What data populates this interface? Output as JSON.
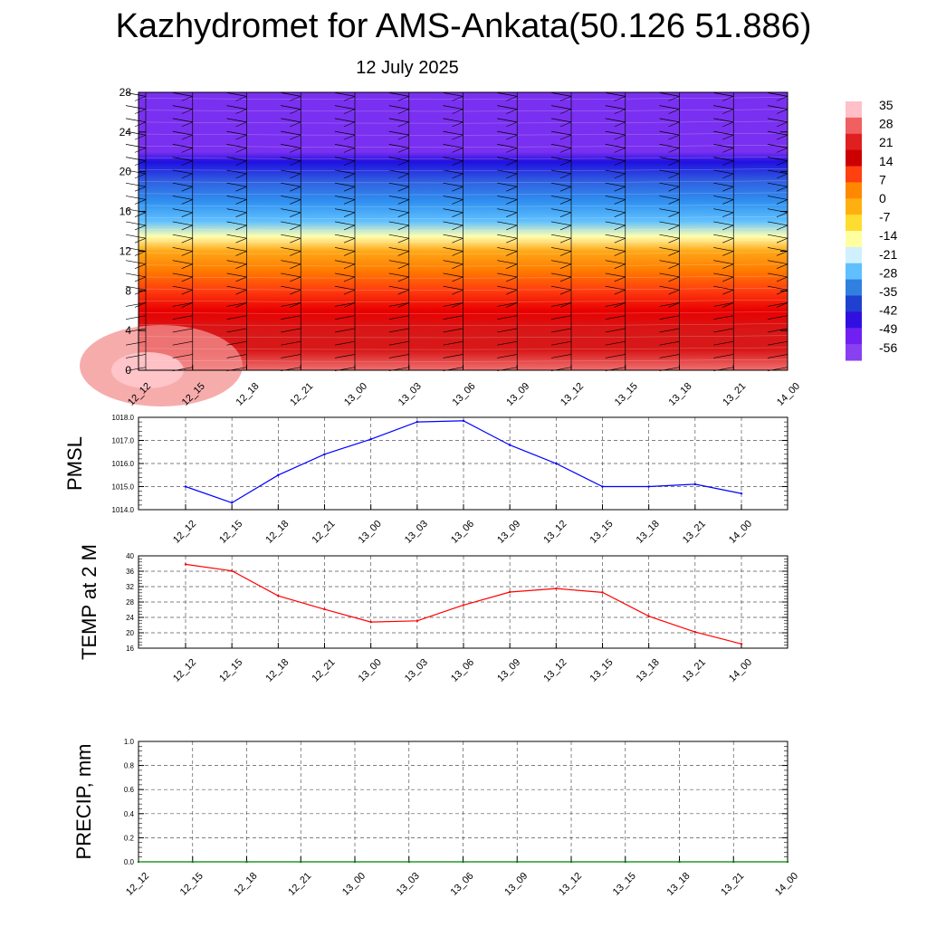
{
  "header": {
    "title": "Kazhydromet for AMS-Ankata(50.126 51.886)",
    "subtitle": "12 July 2025"
  },
  "colors": {
    "pmsl_line": "#0000ff",
    "temp_line": "#ff0000",
    "precip_line": "#008000",
    "grid": "#555555"
  },
  "chart_data": [
    {
      "type": "heatmap",
      "title": "",
      "xlabel": "",
      "ylabel": "",
      "x": [
        "12_12",
        "12_15",
        "12_18",
        "12_21",
        "13_00",
        "13_03",
        "13_06",
        "13_09",
        "13_12",
        "13_15",
        "13_18",
        "13_21",
        "14_00"
      ],
      "yticks": [
        0,
        4,
        8,
        12,
        16,
        20,
        24,
        28
      ],
      "ylim": [
        0,
        28
      ],
      "colorbar_labels": [
        "35",
        "28",
        "21",
        "14",
        "7",
        "0",
        "-7",
        "-14",
        "-21",
        "-28",
        "-35",
        "-42",
        "-49",
        "-56"
      ],
      "colorbar_colors": [
        "#ffc0c8",
        "#f06060",
        "#e02020",
        "#cc0000",
        "#ff4010",
        "#ff8800",
        "#ffb010",
        "#ffdd30",
        "#ffffa0",
        "#d0f0ff",
        "#60c0ff",
        "#3080e0",
        "#2040d0",
        "#3010e0",
        "#7020f0",
        "#8840f0"
      ],
      "levels": [
        {
          "z": 0,
          "t": 30
        },
        {
          "z": 2,
          "t": 26
        },
        {
          "z": 4,
          "t": 22
        },
        {
          "z": 6,
          "t": 17
        },
        {
          "z": 8,
          "t": 10
        },
        {
          "z": 10,
          "t": 2
        },
        {
          "z": 12,
          "t": -5
        },
        {
          "z": 13.5,
          "t": -14
        },
        {
          "z": 15,
          "t": -24
        },
        {
          "z": 17,
          "t": -34
        },
        {
          "z": 19,
          "t": -44
        },
        {
          "z": 21,
          "t": -54
        },
        {
          "z": 22,
          "t": -56
        },
        {
          "z": 24,
          "t": -56
        },
        {
          "z": 28,
          "t": -56
        }
      ]
    },
    {
      "type": "line",
      "title": "",
      "ylabel": "PMSL",
      "xlabel": "",
      "x": [
        "12_12",
        "12_15",
        "12_18",
        "12_21",
        "13_00",
        "13_03",
        "13_06",
        "13_09",
        "13_12",
        "13_15",
        "13_18",
        "13_21",
        "14_00"
      ],
      "ylim": [
        1014.0,
        1018.0
      ],
      "yticks": [
        "1014.0",
        "1015.0",
        "1016.0",
        "1017.0",
        "1018.0"
      ],
      "series": [
        {
          "values": [
            1015.0,
            1014.3,
            1015.5,
            1016.4,
            1017.05,
            1017.8,
            1017.85,
            1016.8,
            1016.0,
            1015.0,
            1015.0,
            1015.1,
            1014.7
          ]
        }
      ]
    },
    {
      "type": "line",
      "title": "",
      "ylabel": "TEMP at 2 M",
      "xlabel": "",
      "x": [
        "12_12",
        "12_15",
        "12_18",
        "12_21",
        "13_00",
        "13_03",
        "13_06",
        "13_09",
        "13_12",
        "13_15",
        "13_18",
        "13_21",
        "14_00"
      ],
      "ylim": [
        16,
        40
      ],
      "yticks": [
        "16",
        "20",
        "24",
        "28",
        "32",
        "36",
        "40"
      ],
      "series": [
        {
          "values": [
            37.8,
            36.1,
            29.6,
            26.1,
            22.8,
            23.1,
            27.2,
            30.6,
            31.5,
            30.5,
            24.3,
            20.2,
            17.1
          ]
        }
      ]
    },
    {
      "type": "line",
      "title": "",
      "ylabel": "PRECIP, mm",
      "xlabel": "",
      "x": [
        "12_12",
        "12_15",
        "12_18",
        "12_21",
        "13_00",
        "13_03",
        "13_06",
        "13_09",
        "13_12",
        "13_15",
        "13_18",
        "13_21",
        "14_00"
      ],
      "ylim": [
        0.0,
        1.0
      ],
      "yticks": [
        "0.0",
        "0.2",
        "0.4",
        "0.6",
        "0.8",
        "1.0"
      ],
      "series": [
        {
          "values": [
            0,
            0,
            0,
            0,
            0,
            0,
            0,
            0,
            0,
            0,
            0,
            0,
            0
          ]
        }
      ]
    }
  ]
}
